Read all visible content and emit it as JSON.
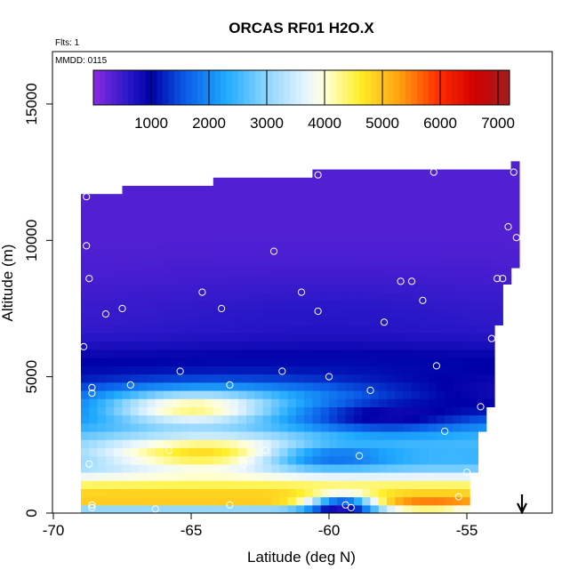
{
  "chart_data": {
    "type": "heatmap",
    "title": "ORCAS RF01 H2O.X",
    "note_flights": "Flts: 1",
    "note_date": "MMDD: 0115",
    "xlabel": "Latitude (deg N)",
    "ylabel": "Altitude (m)",
    "xlim": [
      -70,
      -52
    ],
    "ylim": [
      0,
      17000
    ],
    "x_ticks": [
      -70,
      -65,
      -60,
      -55
    ],
    "x_tick_labels": [
      "-70",
      "-65",
      "-60",
      "-55"
    ],
    "y_ticks": [
      0,
      5000,
      10000,
      15000
    ],
    "y_tick_labels": [
      "0",
      "5000",
      "10000",
      "15000"
    ],
    "colorbar": {
      "min": 0,
      "max": 7200,
      "ticks": [
        1000,
        2000,
        3000,
        4000,
        5000,
        6000,
        7000
      ],
      "tick_labels": [
        "1000",
        "2000",
        "3000",
        "4000",
        "5000",
        "6000",
        "7000"
      ],
      "stops": [
        [
          0,
          "#8a2be2"
        ],
        [
          600,
          "#2a18c8"
        ],
        [
          1000,
          "#0000a8"
        ],
        [
          1600,
          "#0a5ee8"
        ],
        [
          2300,
          "#20aaff"
        ],
        [
          3000,
          "#8ed6ff"
        ],
        [
          3700,
          "#eaf6ff"
        ],
        [
          4000,
          "#ffffdc"
        ],
        [
          4600,
          "#fff02a"
        ],
        [
          5300,
          "#ffa010"
        ],
        [
          6000,
          "#ff2a00"
        ],
        [
          6600,
          "#d00000"
        ],
        [
          7200,
          "#a0201e"
        ]
      ]
    },
    "profile_altitude_range": [
      0,
      12700
    ],
    "sample_points": [
      [
        -68.8,
        11600
      ],
      [
        -66.2,
        12200
      ],
      [
        -60.4,
        12400
      ],
      [
        -56.2,
        12500
      ],
      [
        -53.3,
        12500
      ],
      [
        -68.8,
        9800
      ],
      [
        -62.0,
        9600
      ],
      [
        -53.5,
        10500
      ],
      [
        -53.2,
        10100
      ],
      [
        -68.7,
        8600
      ],
      [
        -64.6,
        8100
      ],
      [
        -61.0,
        8100
      ],
      [
        -57.4,
        8500
      ],
      [
        -57.0,
        8500
      ],
      [
        -53.9,
        8600
      ],
      [
        -53.7,
        8600
      ],
      [
        -68.1,
        7300
      ],
      [
        -67.5,
        7500
      ],
      [
        -63.9,
        7500
      ],
      [
        -60.4,
        7400
      ],
      [
        -58.0,
        7000
      ],
      [
        -56.6,
        7800
      ],
      [
        -68.9,
        6100
      ],
      [
        -54.1,
        6400
      ],
      [
        -56.1,
        5400
      ],
      [
        -65.4,
        5200
      ],
      [
        -61.7,
        5200
      ],
      [
        -60.0,
        5000
      ],
      [
        -68.6,
        4600
      ],
      [
        -68.6,
        4400
      ],
      [
        -67.2,
        4700
      ],
      [
        -63.6,
        4700
      ],
      [
        -58.5,
        4500
      ],
      [
        -54.5,
        3900
      ],
      [
        -55.8,
        3000
      ],
      [
        -65.8,
        2300
      ],
      [
        -62.3,
        2300
      ],
      [
        -58.9,
        2100
      ],
      [
        -68.7,
        1800
      ],
      [
        -67.0,
        1900
      ],
      [
        -63.1,
        1800
      ],
      [
        -55.0,
        1500
      ],
      [
        -55.3,
        600
      ],
      [
        -68.6,
        300
      ],
      [
        -63.6,
        300
      ],
      [
        -59.4,
        300
      ],
      [
        -59.2,
        200
      ],
      [
        -68.6,
        200
      ],
      [
        -66.3,
        150
      ],
      [
        -55.3,
        150
      ]
    ],
    "marker_latitude": -53.0
  }
}
